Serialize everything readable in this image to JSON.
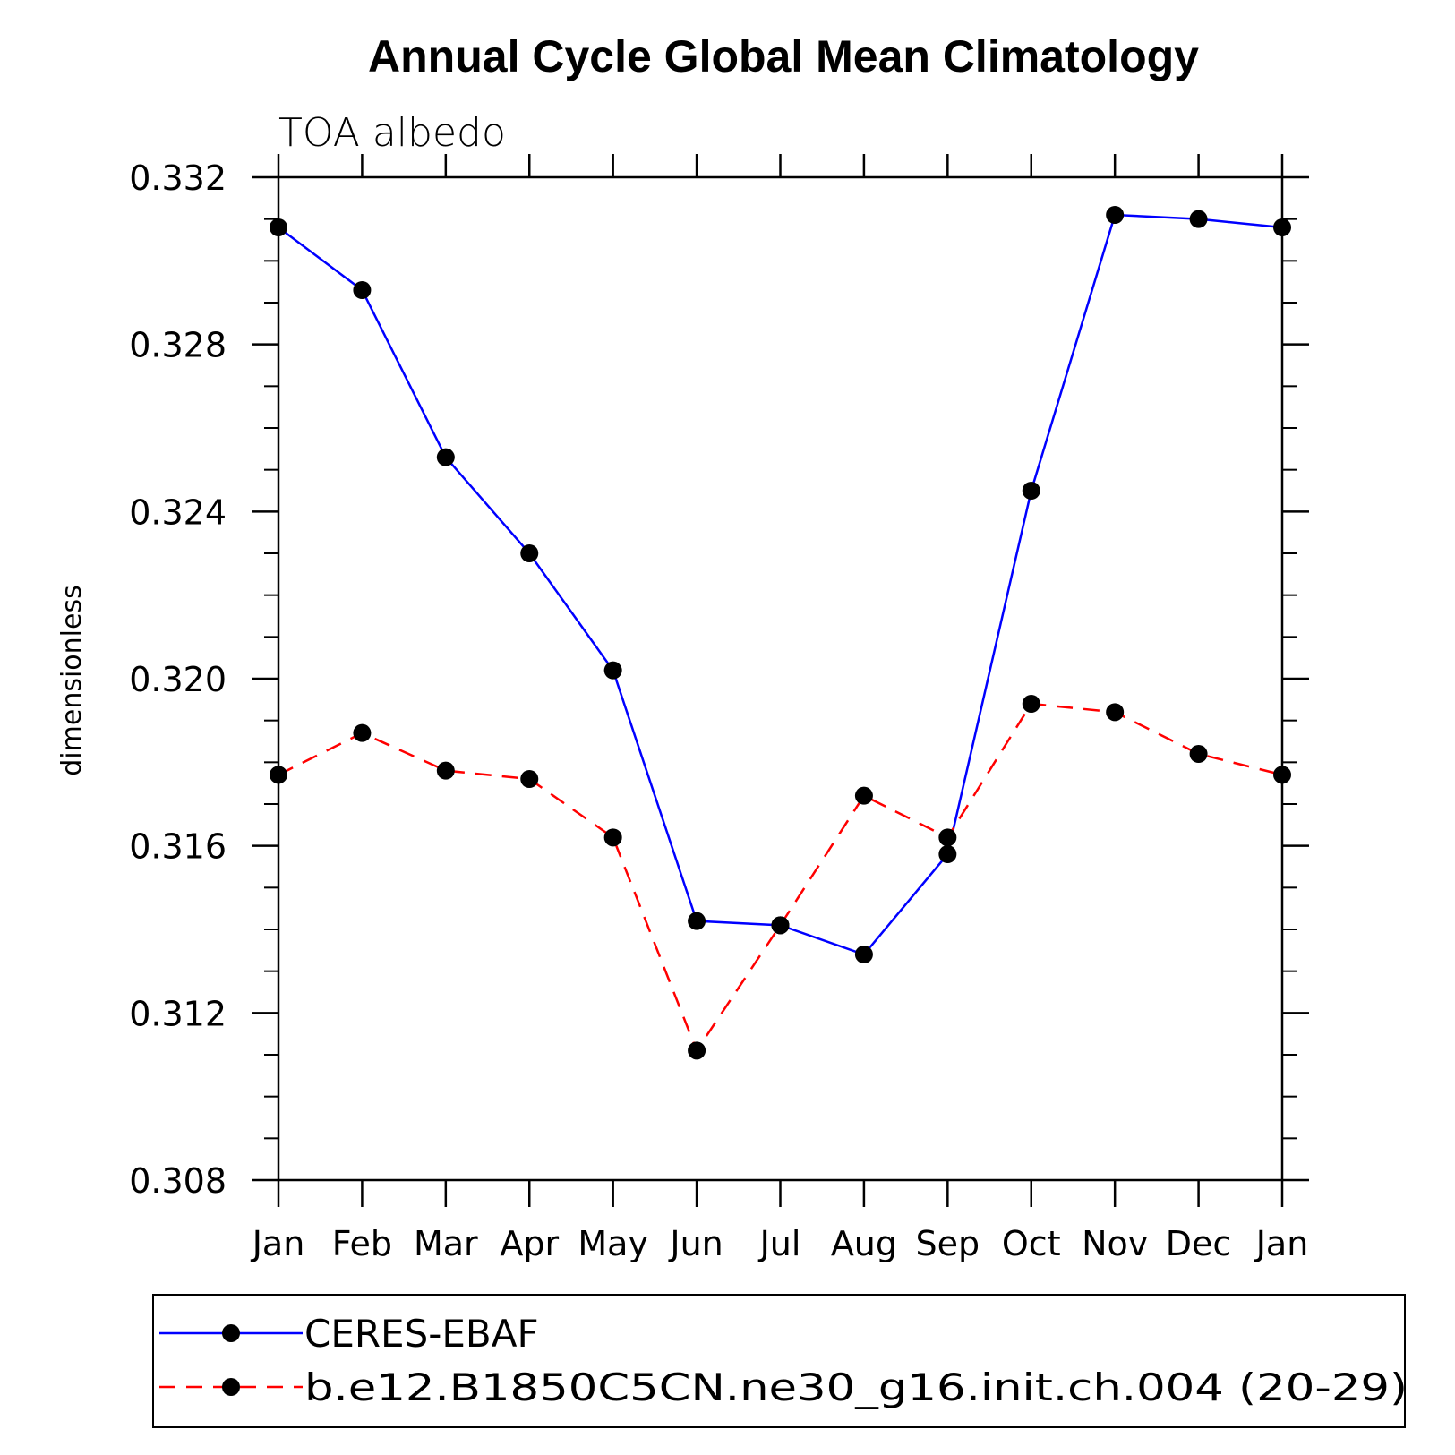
{
  "chart_data": {
    "type": "line",
    "title": "Annual Cycle Global Mean Climatology",
    "subtitle": "TOA albedo",
    "ylabel": "dimensionless",
    "xlabel": "",
    "categories": [
      "Jan",
      "Feb",
      "Mar",
      "Apr",
      "May",
      "Jun",
      "Jul",
      "Aug",
      "Sep",
      "Oct",
      "Nov",
      "Dec",
      "Jan"
    ],
    "ylim": [
      0.308,
      0.332
    ],
    "yticks": [
      0.308,
      0.312,
      0.316,
      0.32,
      0.324,
      0.328,
      0.332
    ],
    "ytick_labels": [
      "0.308",
      "0.312",
      "0.316",
      "0.320",
      "0.324",
      "0.328",
      "0.332"
    ],
    "series": [
      {
        "name": "CERES-EBAF",
        "color": "#0000ff",
        "dashed": false,
        "values": [
          0.3308,
          0.3293,
          0.3253,
          0.323,
          0.3202,
          0.3142,
          0.3141,
          0.3134,
          0.3158,
          0.3245,
          0.3311,
          0.331,
          0.3308
        ]
      },
      {
        "name": "b.e12.B1850C5CN.ne30_g16.init.ch.004 (20-29)",
        "color": "#ff0000",
        "dashed": true,
        "values": [
          0.3177,
          0.3187,
          0.3178,
          0.3176,
          0.3162,
          0.3111,
          0.3141,
          0.3172,
          0.3162,
          0.3194,
          0.3192,
          0.3182,
          0.3177
        ]
      }
    ],
    "legend_position": "bottom"
  }
}
